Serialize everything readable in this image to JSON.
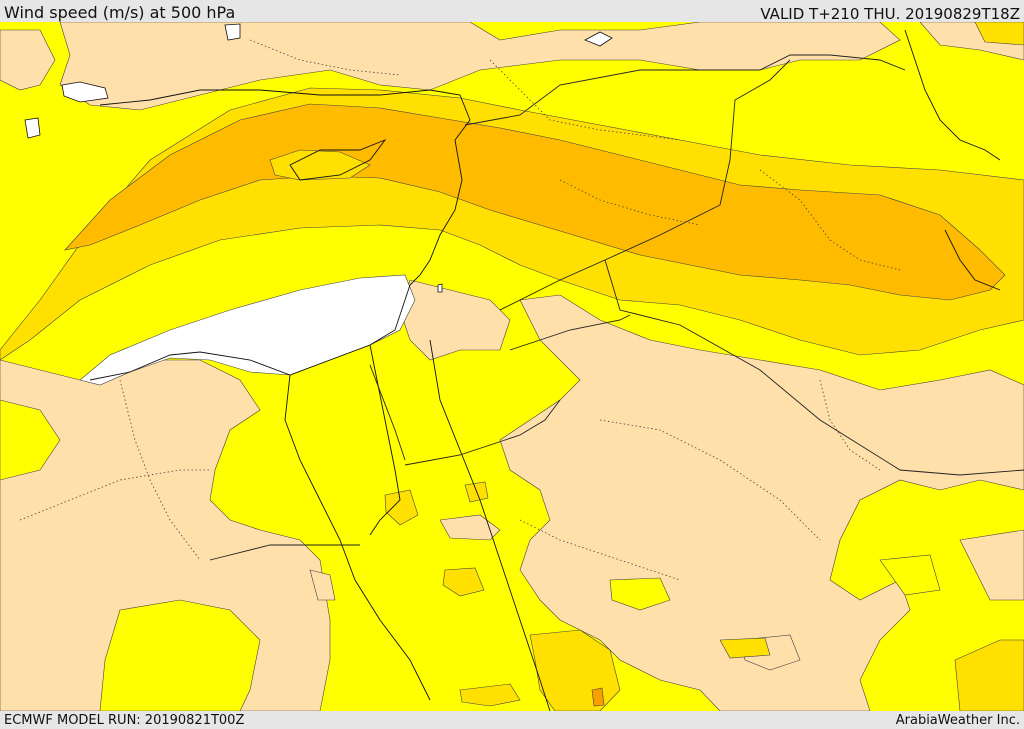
{
  "header": {
    "title": "Wind speed (m/s) at 500 hPa",
    "valid_time": "VALID T+210 THU. 20190829T18Z"
  },
  "footer": {
    "model_run": "ECMWF MODEL RUN: 20190821T00Z",
    "credit": "ArabiaWeather Inc."
  },
  "map": {
    "variable": "wind speed",
    "level": "500 hPa",
    "units": "m/s",
    "colors": {
      "below_lowest_band": "#ffffff",
      "band_1": "#ffdfaa",
      "band_2": "#ffff00",
      "band_3": "#ffe000",
      "band_4": "#ffbb00",
      "band_5": "#f7a000",
      "contour_line": "#333333",
      "coastline": "#111111",
      "border": "#222222",
      "admin_border": "#444444"
    }
  }
}
